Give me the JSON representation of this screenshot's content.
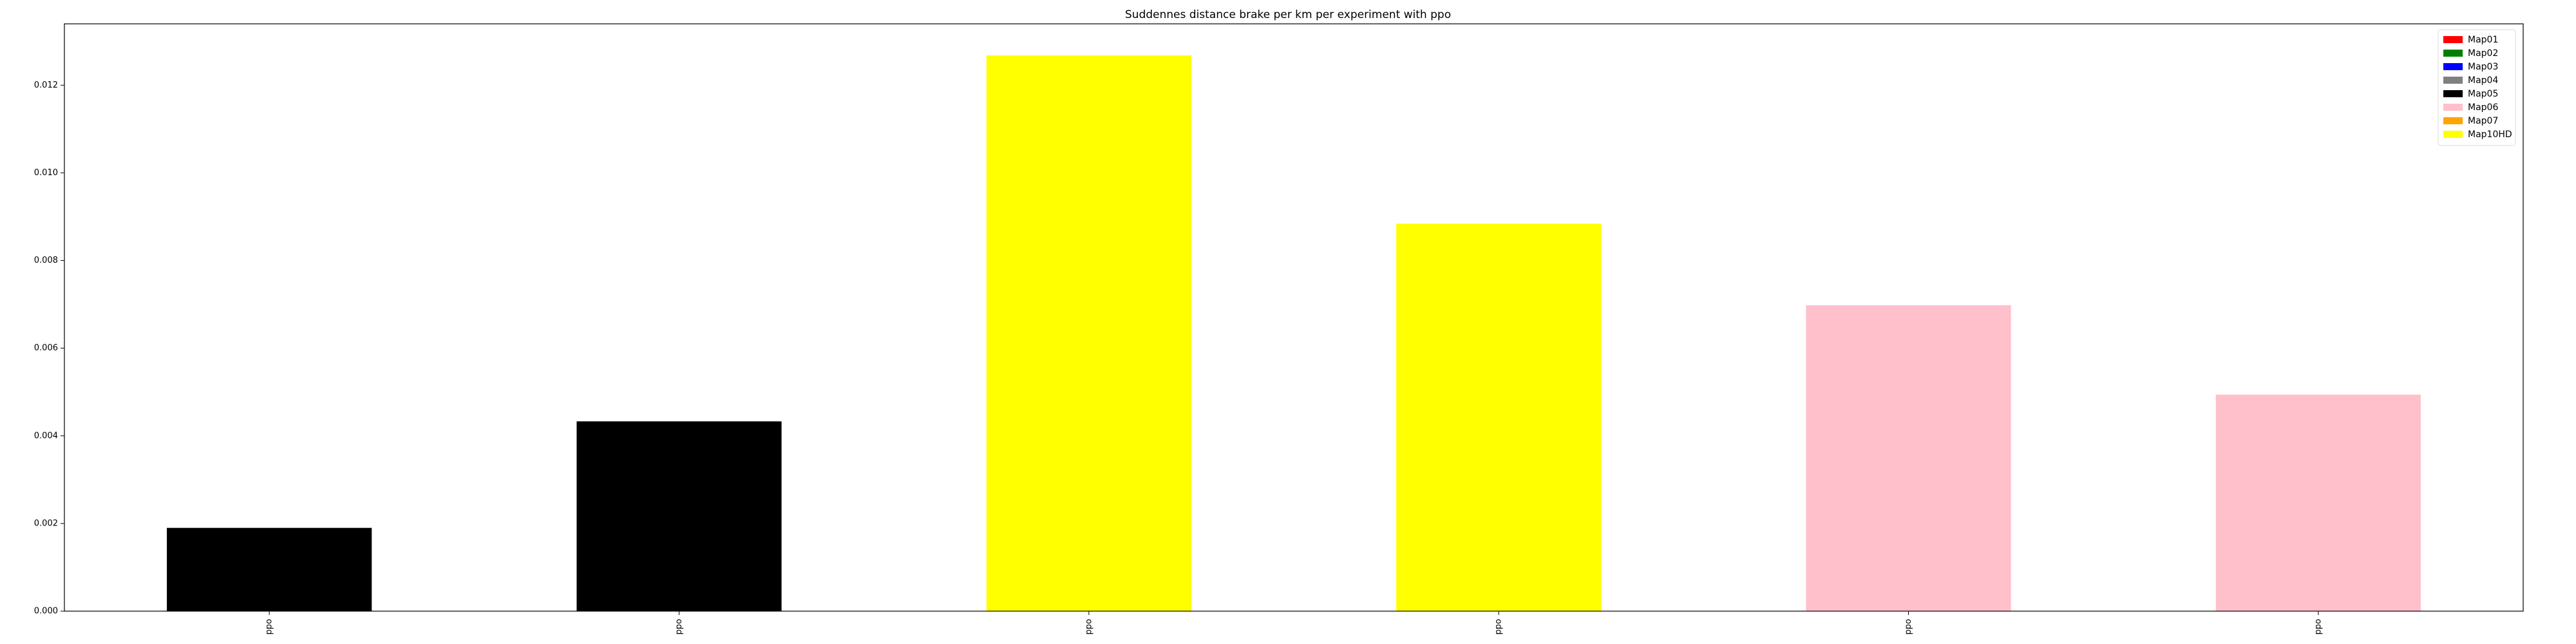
{
  "chart_data": {
    "type": "bar",
    "title": "Suddennes distance brake per km per experiment with ppo",
    "xlabel": "",
    "ylabel": "",
    "categories": [
      "ppo",
      "ppo",
      "ppo",
      "ppo",
      "ppo",
      "ppo"
    ],
    "values": [
      0.0019,
      0.00433,
      0.01268,
      0.00884,
      0.00698,
      0.00494
    ],
    "bar_colors": [
      "#000000",
      "#000000",
      "#ffff00",
      "#ffff00",
      "#ffc0cb",
      "#ffc0cb"
    ],
    "ylim": [
      0,
      0.0134
    ],
    "yticks": [
      "0.000",
      "0.002",
      "0.004",
      "0.006",
      "0.008",
      "0.010",
      "0.012"
    ],
    "ytick_values": [
      0,
      0.002,
      0.004,
      0.006,
      0.008,
      0.01,
      0.012
    ],
    "grid": false,
    "legend_position": "top-right",
    "legend": [
      {
        "label": "Map01",
        "color": "#ff0000"
      },
      {
        "label": "Map02",
        "color": "#008000"
      },
      {
        "label": "Map03",
        "color": "#0000ff"
      },
      {
        "label": "Map04",
        "color": "#808080"
      },
      {
        "label": "Map05",
        "color": "#000000"
      },
      {
        "label": "Map06",
        "color": "#ffc0cb"
      },
      {
        "label": "Map07",
        "color": "#ffa500"
      },
      {
        "label": "Map10HD",
        "color": "#ffff00"
      }
    ]
  }
}
